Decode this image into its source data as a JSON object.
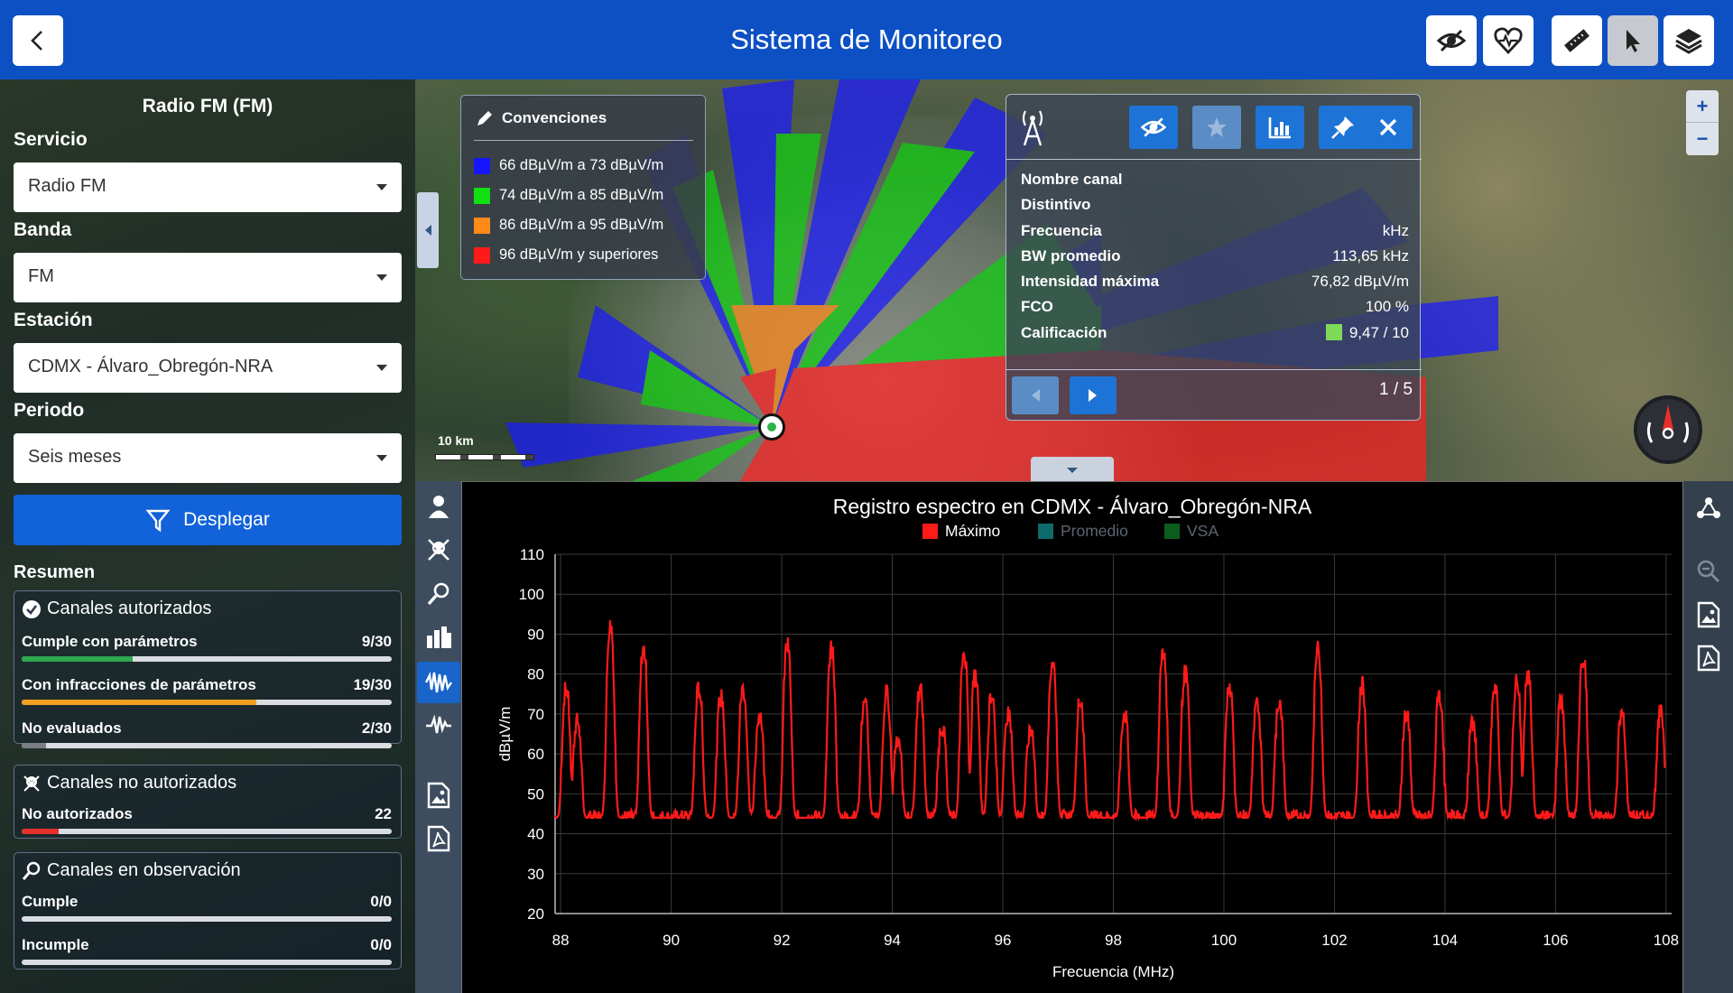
{
  "header": {
    "title": "Sistema de Monitoreo"
  },
  "sidebar": {
    "title": "Radio FM (FM)",
    "fields": [
      {
        "label": "Servicio",
        "value": "Radio FM"
      },
      {
        "label": "Banda",
        "value": "FM"
      },
      {
        "label": "Estación",
        "value": "CDMX - Álvaro_Obregón-NRA"
      },
      {
        "label": "Periodo",
        "value": "Seis meses"
      }
    ],
    "deploy_label": "Desplegar",
    "summary_label": "Resumen",
    "cards": [
      {
        "title": "Canales autorizados",
        "rows": [
          {
            "label": "Cumple con parámetros",
            "value": "9/30",
            "fraction": 0.3,
            "color": "#2fa84f"
          },
          {
            "label": "Con infracciones de parámetros",
            "value": "19/30",
            "fraction": 0.633,
            "color": "#f0a020"
          },
          {
            "label": "No evaluados",
            "value": "2/30",
            "fraction": 0.067,
            "color": "#7a7f86"
          }
        ]
      },
      {
        "title": "Canales no autorizados",
        "rows": [
          {
            "label": "No autorizados",
            "value": "22",
            "fraction": 0.1,
            "color": "#e5302a"
          }
        ]
      },
      {
        "title": "Canales en observación",
        "rows": [
          {
            "label": "Cumple",
            "value": "0/0",
            "fraction": 0,
            "color": "#2fa84f"
          },
          {
            "label": "Incumple",
            "value": "0/0",
            "fraction": 0,
            "color": "#e5302a"
          }
        ]
      }
    ]
  },
  "map": {
    "legend_title": "Convenciones",
    "legend_items": [
      {
        "label": "66 dBµV/m a 73 dBµV/m",
        "color": "#1515ff"
      },
      {
        "label": "74 dBµV/m a 85 dBµV/m",
        "color": "#10e010"
      },
      {
        "label": "86 dBµV/m a 95 dBµV/m",
        "color": "#ff8a1a"
      },
      {
        "label": "96 dBµV/m y superiores",
        "color": "#ff1a1a"
      }
    ],
    "scale_label": "10 km",
    "zoom_in": "+",
    "zoom_out": "−",
    "info": {
      "rows": [
        {
          "label": "Nombre canal",
          "value": ""
        },
        {
          "label": "Distintivo",
          "value": ""
        },
        {
          "label": "Frecuencia",
          "value": "kHz"
        },
        {
          "label": "BW promedio",
          "value": "113,65 kHz"
        },
        {
          "label": "Intensidad máxima",
          "value": "76,82 dBµV/m"
        },
        {
          "label": "FCO",
          "value": "100 %"
        },
        {
          "label": "Calificación",
          "value": "9,47 / 10"
        }
      ],
      "rating_color": "#7ed957",
      "page": "1 / 5"
    }
  },
  "chart_data": {
    "type": "line",
    "title": "Registro espectro en CDMX - Álvaro_Obregón-NRA",
    "xlabel": "Frecuencia (MHz)",
    "ylabel": "dBµV/m",
    "xlim": [
      87.9,
      108.1
    ],
    "ylim": [
      20,
      110
    ],
    "x_ticks": [
      88,
      90,
      92,
      94,
      96,
      98,
      100,
      102,
      104,
      106,
      108
    ],
    "y_ticks": [
      20,
      30,
      40,
      50,
      60,
      70,
      80,
      90,
      100,
      110
    ],
    "grid": true,
    "legend_position": "top-center",
    "series": [
      {
        "name": "Máximo",
        "color": "#ff1a1a",
        "visible": true,
        "baseline": 44,
        "peaks": [
          [
            88.1,
            76
          ],
          [
            88.3,
            68
          ],
          [
            88.9,
            92
          ],
          [
            89.5,
            86
          ],
          [
            90.5,
            76
          ],
          [
            90.9,
            74
          ],
          [
            91.3,
            76
          ],
          [
            91.6,
            70
          ],
          [
            92.1,
            87
          ],
          [
            92.9,
            86
          ],
          [
            93.5,
            72
          ],
          [
            93.9,
            75
          ],
          [
            94.1,
            64
          ],
          [
            94.5,
            76
          ],
          [
            94.9,
            67
          ],
          [
            95.3,
            85
          ],
          [
            95.5,
            79
          ],
          [
            95.8,
            75
          ],
          [
            96.1,
            70
          ],
          [
            96.5,
            66
          ],
          [
            96.9,
            83
          ],
          [
            97.4,
            73
          ],
          [
            98.2,
            70
          ],
          [
            98.9,
            86
          ],
          [
            99.3,
            80
          ],
          [
            100.1,
            77
          ],
          [
            100.6,
            72
          ],
          [
            101.0,
            73
          ],
          [
            101.7,
            86
          ],
          [
            102.5,
            77
          ],
          [
            103.3,
            70
          ],
          [
            103.9,
            74
          ],
          [
            104.5,
            68
          ],
          [
            104.9,
            76
          ],
          [
            105.3,
            78
          ],
          [
            105.5,
            79
          ],
          [
            106.1,
            73
          ],
          [
            106.5,
            84
          ],
          [
            107.2,
            70
          ],
          [
            107.9,
            70
          ]
        ]
      },
      {
        "name": "Promedio",
        "color": "#0f6b6b",
        "visible": false
      },
      {
        "name": "VSA",
        "color": "#0b5c1f",
        "visible": false
      }
    ]
  }
}
